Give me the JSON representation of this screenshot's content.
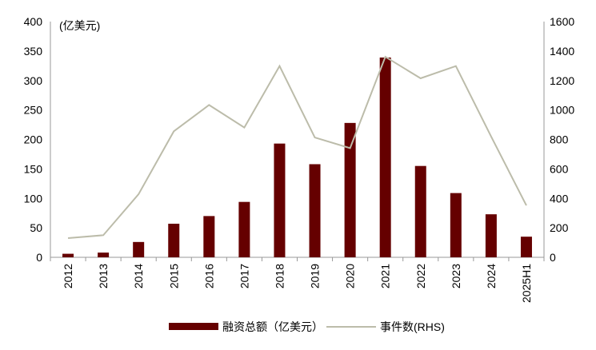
{
  "chart_data": {
    "type": "bar+line",
    "unit_label": "(亿美元)",
    "categories": [
      "2012",
      "2013",
      "2014",
      "2015",
      "2016",
      "2017",
      "2018",
      "2019",
      "2020",
      "2021",
      "2022",
      "2023",
      "2024",
      "2025H1"
    ],
    "series": [
      {
        "name": "融资总额（亿美元）",
        "type": "bar",
        "axis": "left",
        "color": "#650000",
        "values": [
          6,
          8,
          26,
          57,
          70,
          94,
          193,
          158,
          228,
          339,
          155,
          109,
          73,
          35
        ]
      },
      {
        "name": "事件数(RHS)",
        "type": "line",
        "axis": "right",
        "color": "#bcbcaa",
        "values": [
          130,
          150,
          428,
          855,
          1034,
          881,
          1298,
          813,
          741,
          1361,
          1215,
          1298,
          820,
          352
        ]
      }
    ],
    "y_left": {
      "range": [
        0,
        400
      ],
      "ticks": [
        "0",
        "50",
        "100",
        "150",
        "200",
        "250",
        "300",
        "350",
        "400"
      ]
    },
    "y_right": {
      "range": [
        0,
        1600
      ],
      "ticks": [
        "0",
        "200",
        "400",
        "600",
        "800",
        "1000",
        "1200",
        "1400",
        "1600"
      ]
    },
    "grid": false,
    "legend": "bottom"
  }
}
